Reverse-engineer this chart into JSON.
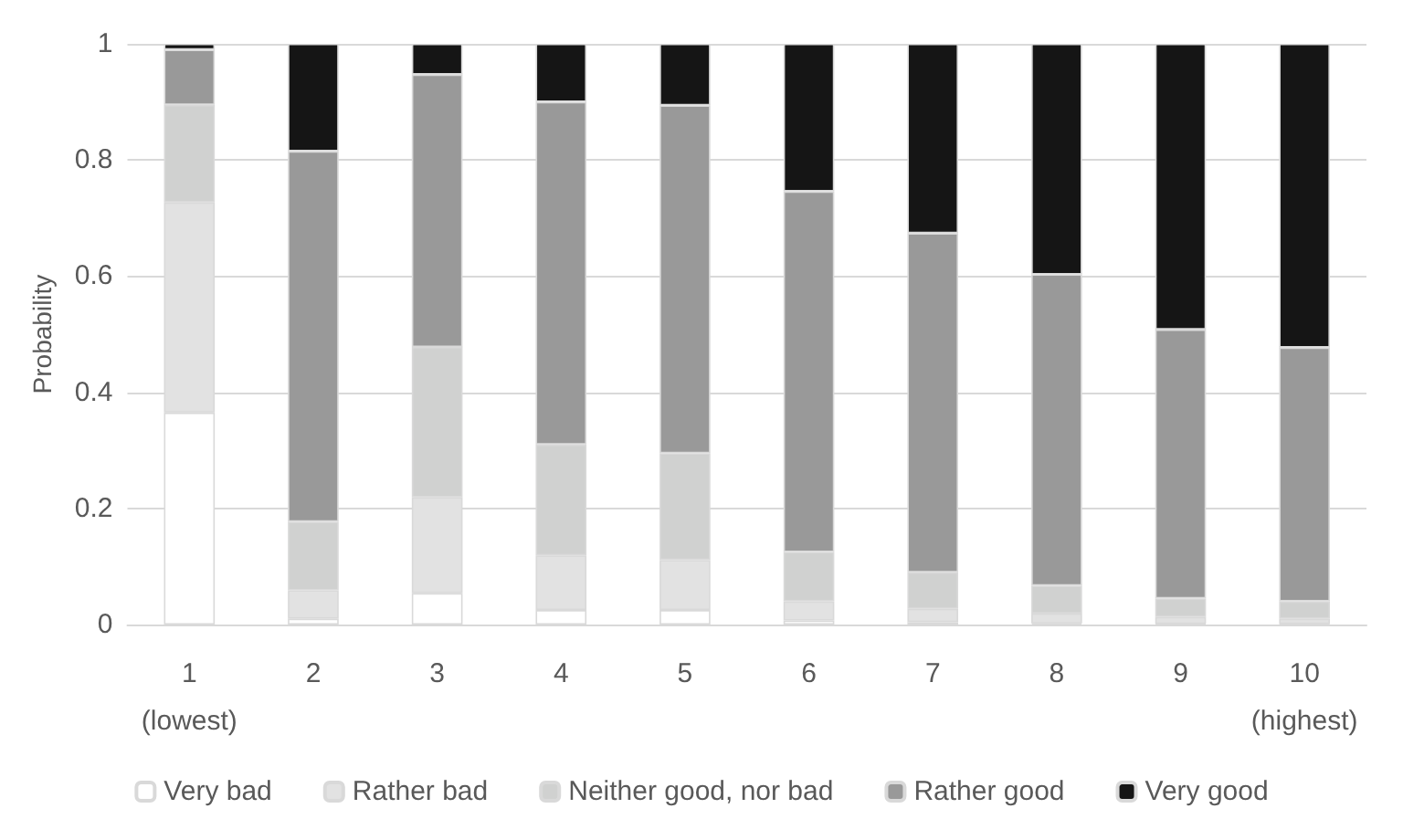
{
  "chart_data": {
    "type": "bar",
    "stacked": true,
    "ylabel": "Probability",
    "categories": [
      "1\n(lowest)",
      "2",
      "3",
      "4",
      "5",
      "6",
      "7",
      "8",
      "9",
      "10\n(highest)"
    ],
    "ylim": [
      0,
      1
    ],
    "yticks": [
      0,
      0.2,
      0.4,
      0.6,
      0.8,
      1
    ],
    "grid": "y",
    "legend": "bottom",
    "series": [
      {
        "name": "Very bad",
        "color": "#ffffff",
        "values": [
          0.365,
          0.01,
          0.054,
          0.025,
          0.025,
          0.007,
          0.004,
          0.002,
          0.001,
          0.001
        ]
      },
      {
        "name": "Rather bad",
        "color": "#e2e2e2",
        "values": [
          0.362,
          0.049,
          0.165,
          0.094,
          0.086,
          0.033,
          0.023,
          0.017,
          0.012,
          0.009
        ]
      },
      {
        "name": "Neither good, nor bad",
        "color": "#d0d1d0",
        "values": [
          0.168,
          0.118,
          0.259,
          0.191,
          0.184,
          0.085,
          0.063,
          0.048,
          0.032,
          0.03
        ]
      },
      {
        "name": "Rather good",
        "color": "#999999",
        "values": [
          0.095,
          0.638,
          0.469,
          0.59,
          0.599,
          0.621,
          0.584,
          0.536,
          0.463,
          0.437
        ]
      },
      {
        "name": "Very good",
        "color": "#151515",
        "values": [
          0.01,
          0.185,
          0.053,
          0.1,
          0.106,
          0.254,
          0.326,
          0.397,
          0.492,
          0.523
        ]
      }
    ]
  }
}
